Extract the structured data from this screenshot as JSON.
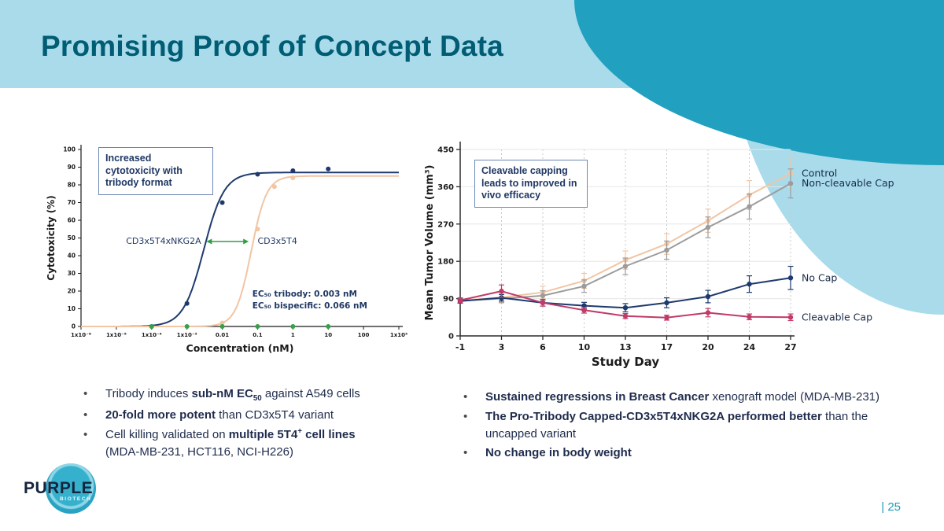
{
  "slide": {
    "title": "Promising Proof of Concept Data",
    "page_number": "| 25"
  },
  "logo": {
    "word": "PURPLE",
    "sub": "BIOTECH"
  },
  "left_panel": {
    "callout": "Increased cytotoxicity with tribody format",
    "bullets": [
      [
        {
          "t": "Tribody induces "
        },
        {
          "t": "sub-nM EC",
          "b": true
        },
        {
          "t": "50",
          "b": true,
          "sub": true
        },
        {
          "t": " against A549 cells"
        }
      ],
      [
        {
          "t": "20-fold more potent",
          "b": true
        },
        {
          "t": " than CD3x5T4 variant"
        }
      ],
      [
        {
          "t": "Cell killing validated on "
        },
        {
          "t": "multiple 5T4",
          "b": true
        },
        {
          "t": "+",
          "b": true,
          "sup": true
        },
        {
          "t": " cell lines",
          "b": true
        },
        {
          "t": "(MDA-MB-231, HCT116, NCI-H226)",
          "br": true
        }
      ]
    ]
  },
  "right_panel": {
    "callout": "Cleavable capping leads to improved in vivo efficacy",
    "bullets": [
      [
        {
          "t": "Sustained regressions in Breast Cancer",
          "b": true
        },
        {
          "t": " xenograft model (MDA-MB-231)"
        }
      ],
      [
        {
          "t": "The Pro-Tribody Capped-CD3x5T4xNKG2A performed better",
          "b": true
        },
        {
          "t": " than the uncapped variant"
        }
      ],
      [
        {
          "t": "No change in body weight",
          "b": true
        }
      ]
    ]
  },
  "chart_data": [
    {
      "type": "line",
      "xlabel": "Concentration (nM)",
      "ylabel": "Cytotoxicity (%)",
      "x_scale": "log10",
      "xlim_log": [
        -6,
        3
      ],
      "ylim": [
        0,
        100
      ],
      "y_ticks": [
        0,
        10,
        20,
        30,
        40,
        50,
        60,
        70,
        80,
        90,
        100
      ],
      "x_tick_logs": [
        -6,
        -5,
        -4,
        -3,
        -2,
        -1,
        0,
        1,
        2,
        3
      ],
      "x_tick_labels": [
        "1x10⁻⁶",
        "1x10⁻⁵",
        "1x10⁻⁴",
        "1x10⁻³",
        "0.01",
        "0.1",
        "1",
        "10",
        "100",
        "1x10³"
      ],
      "grid": false,
      "series": [
        {
          "name": "CD3x5T4xNKG2A (tribody)",
          "color": "#1e3a6d",
          "ec50_nM": 0.003,
          "top": 87,
          "hill": 1.5,
          "points": [
            [
              0.0001,
              0
            ],
            [
              0.001,
              13
            ],
            [
              0.01,
              70
            ],
            [
              0.1,
              86
            ],
            [
              1,
              88
            ],
            [
              10,
              89
            ]
          ]
        },
        {
          "name": "CD3x5T4 (bispecific)",
          "color": "#f2c5a3",
          "ec50_nM": 0.066,
          "top": 85,
          "hill": 2,
          "points": [
            [
              0.01,
              2
            ],
            [
              0.1,
              55
            ],
            [
              0.3,
              79
            ],
            [
              1,
              84
            ]
          ]
        },
        {
          "name": "unlabeled baseline",
          "color": "#35a149",
          "points": [
            [
              0.0001,
              0
            ],
            [
              0.001,
              0
            ],
            [
              0.01,
              0
            ],
            [
              0.1,
              0
            ],
            [
              1,
              0
            ],
            [
              10,
              0
            ]
          ]
        }
      ],
      "annotations": {
        "arrow": {
          "x1_log": -2.45,
          "x2_log": -1.25,
          "y": 48,
          "color": "#2f9e44"
        },
        "curve_labels": [
          {
            "text": "CD3x5T4xNKG2A",
            "x_log": -2.6,
            "y": 48,
            "anchor": "end"
          },
          {
            "text": "CD3x5T4",
            "x_log": -1.0,
            "y": 48,
            "anchor": "start"
          }
        ],
        "ec50_text": [
          "EC₅₀ tribody: 0.003 nM",
          "EC₅₀ bispecific: 0.066 nM"
        ]
      }
    },
    {
      "type": "line",
      "xlabel": "Study Day",
      "ylabel": "Mean Tumor Volume (mm³)",
      "x": [
        -1,
        3,
        6,
        10,
        13,
        17,
        20,
        24,
        27
      ],
      "ylim": [
        0,
        450
      ],
      "y_ticks": [
        0,
        90,
        180,
        270,
        360,
        450
      ],
      "grid": true,
      "legend_position": "right-of-line-ends",
      "series": [
        {
          "name": "Control",
          "color": "#f2c5a3",
          "values": [
            85,
            93,
            105,
            133,
            183,
            222,
            278,
            340,
            392
          ],
          "errors": [
            6,
            12,
            15,
            18,
            22,
            25,
            28,
            35,
            38
          ]
        },
        {
          "name": "Non-cleavable Cap",
          "color": "#9c9c9c",
          "values": [
            85,
            90,
            97,
            120,
            168,
            207,
            262,
            312,
            368
          ],
          "errors": [
            6,
            10,
            12,
            15,
            20,
            22,
            25,
            30,
            35
          ]
        },
        {
          "name": "No Cap",
          "color": "#1e3a6d",
          "values": [
            84,
            92,
            80,
            73,
            68,
            80,
            95,
            125,
            140
          ],
          "errors": [
            5,
            8,
            8,
            8,
            10,
            12,
            15,
            20,
            28
          ]
        },
        {
          "name": "Cleavable Cap",
          "color": "#c23a68",
          "values": [
            86,
            108,
            80,
            62,
            48,
            44,
            56,
            46,
            45
          ],
          "errors": [
            6,
            15,
            8,
            7,
            6,
            6,
            10,
            7,
            8
          ]
        }
      ]
    }
  ]
}
